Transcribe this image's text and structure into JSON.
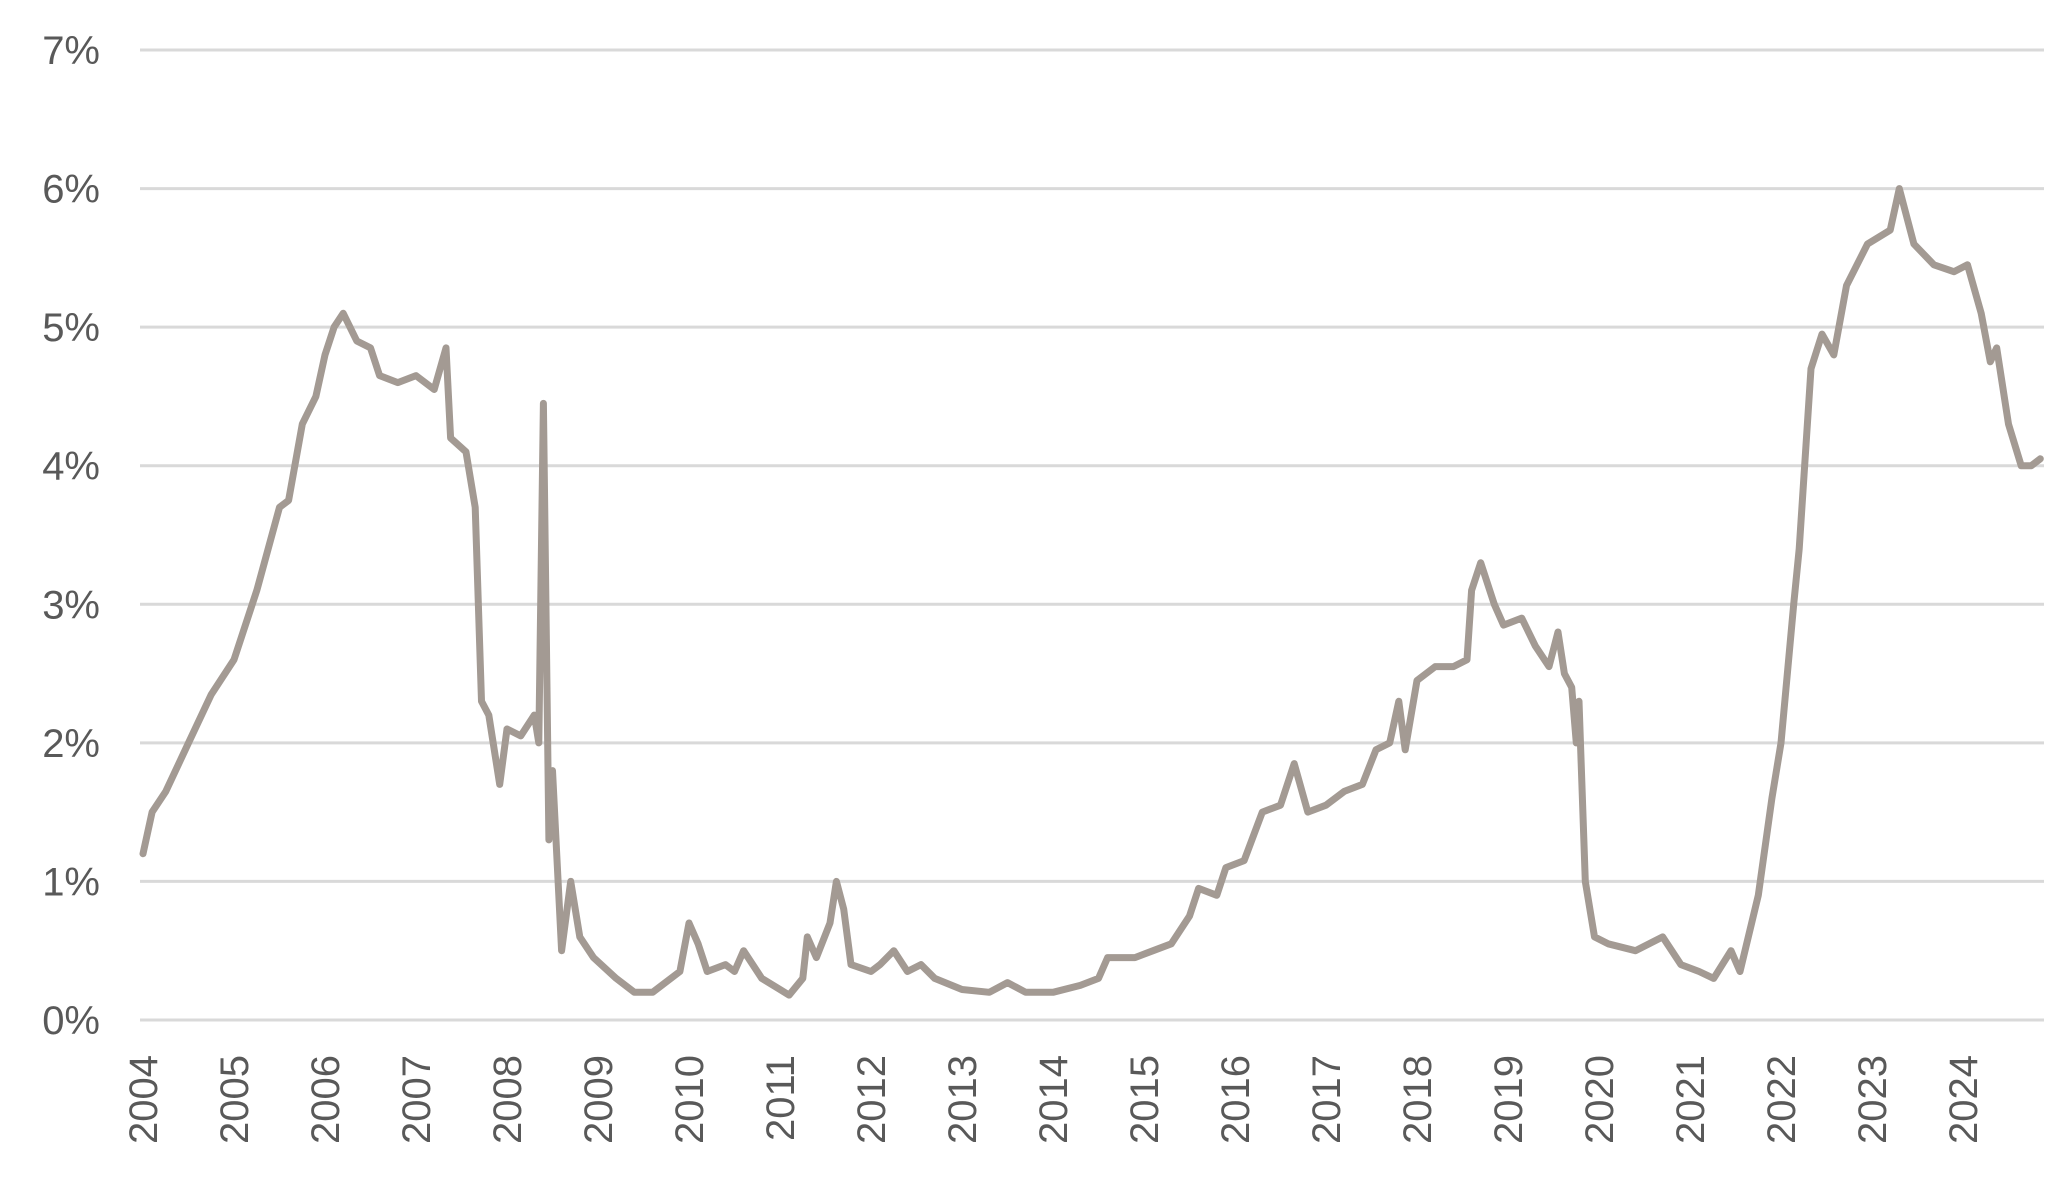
{
  "chart_data": {
    "type": "line",
    "title": "",
    "xlabel": "",
    "ylabel": "",
    "xlim": [
      2004,
      2024.95
    ],
    "ylim": [
      0,
      7
    ],
    "grid": true,
    "legend": "none",
    "line_color": "#a39a93",
    "y_ticks": [
      "0%",
      "1%",
      "2%",
      "3%",
      "4%",
      "5%",
      "6%",
      "7%"
    ],
    "x_ticks": [
      "2004",
      "2005",
      "2006",
      "2007",
      "2008",
      "2009",
      "2010",
      "2011",
      "2012",
      "2013",
      "2014",
      "2015",
      "2016",
      "2017",
      "2018",
      "2019",
      "2020",
      "2021",
      "2022",
      "2023",
      "2024"
    ],
    "series": [
      {
        "x": [
          2004.0,
          2004.1,
          2004.25,
          2004.5,
          2004.75,
          2005.0,
          2005.25,
          2005.5,
          2005.6,
          2005.75,
          2005.9,
          2006.0,
          2006.1,
          2006.2,
          2006.35,
          2006.5,
          2006.6,
          2006.8,
          2007.0,
          2007.2,
          2007.33,
          2007.38,
          2007.55,
          2007.65,
          2007.72,
          2007.8,
          2007.92,
          2008.0,
          2008.15,
          2008.3,
          2008.35,
          2008.4,
          2008.46,
          2008.5,
          2008.6,
          2008.7,
          2008.8,
          2008.95,
          2009.2,
          2009.4,
          2009.6,
          2009.9,
          2010.0,
          2010.1,
          2010.2,
          2010.4,
          2010.5,
          2010.6,
          2010.8,
          2011.0,
          2011.1,
          2011.25,
          2011.3,
          2011.4,
          2011.55,
          2011.62,
          2011.7,
          2011.78,
          2012.0,
          2012.1,
          2012.25,
          2012.4,
          2012.55,
          2012.7,
          2013.0,
          2013.3,
          2013.5,
          2013.7,
          2014.0,
          2014.3,
          2014.5,
          2014.6,
          2014.9,
          2015.1,
          2015.3,
          2015.5,
          2015.6,
          2015.8,
          2015.9,
          2016.1,
          2016.3,
          2016.5,
          2016.65,
          2016.8,
          2017.0,
          2017.2,
          2017.4,
          2017.55,
          2017.7,
          2017.8,
          2017.87,
          2018.0,
          2018.2,
          2018.4,
          2018.55,
          2018.6,
          2018.7,
          2018.85,
          2018.95,
          2019.15,
          2019.3,
          2019.45,
          2019.55,
          2019.62,
          2019.7,
          2019.75,
          2019.78,
          2019.85,
          2019.95,
          2020.1,
          2020.4,
          2020.7,
          2020.9,
          2021.1,
          2021.26,
          2021.45,
          2021.55,
          2021.75,
          2021.9,
          2022.0,
          2022.14,
          2022.2,
          2022.33,
          2022.45,
          2022.58,
          2022.72,
          2022.95,
          2023.2,
          2023.3,
          2023.46,
          2023.68,
          2023.9,
          2024.05,
          2024.2,
          2024.3,
          2024.37,
          2024.5,
          2024.64,
          2024.75,
          2024.85
        ],
        "y": [
          1.2,
          1.5,
          1.65,
          2.0,
          2.35,
          2.6,
          3.1,
          3.7,
          3.75,
          4.3,
          4.5,
          4.8,
          5.0,
          5.1,
          4.9,
          4.85,
          4.65,
          4.6,
          4.65,
          4.55,
          4.85,
          4.2,
          4.1,
          3.7,
          2.3,
          2.2,
          1.7,
          2.1,
          2.05,
          2.2,
          2.0,
          4.45,
          1.3,
          1.8,
          0.5,
          1.0,
          0.6,
          0.45,
          0.3,
          0.2,
          0.2,
          0.35,
          0.7,
          0.55,
          0.35,
          0.4,
          0.35,
          0.5,
          0.3,
          0.22,
          0.18,
          0.3,
          0.6,
          0.45,
          0.7,
          1.0,
          0.8,
          0.4,
          0.35,
          0.4,
          0.5,
          0.35,
          0.4,
          0.3,
          0.22,
          0.2,
          0.27,
          0.2,
          0.2,
          0.25,
          0.3,
          0.45,
          0.45,
          0.5,
          0.55,
          0.75,
          0.95,
          0.9,
          1.1,
          1.15,
          1.5,
          1.55,
          1.85,
          1.5,
          1.55,
          1.65,
          1.7,
          1.95,
          2.0,
          2.3,
          1.95,
          2.45,
          2.55,
          2.55,
          2.6,
          3.1,
          3.3,
          3.0,
          2.85,
          2.9,
          2.7,
          2.55,
          2.8,
          2.5,
          2.4,
          2.0,
          2.3,
          1.0,
          0.6,
          0.55,
          0.5,
          0.6,
          0.4,
          0.35,
          0.3,
          0.5,
          0.35,
          0.9,
          1.6,
          2.0,
          3.0,
          3.4,
          4.7,
          4.95,
          4.8,
          5.3,
          5.6,
          5.7,
          6.0,
          5.6,
          5.45,
          5.4,
          5.45,
          5.1,
          4.75,
          4.85,
          4.3,
          4.0,
          4.0,
          4.05
        ]
      }
    ]
  }
}
